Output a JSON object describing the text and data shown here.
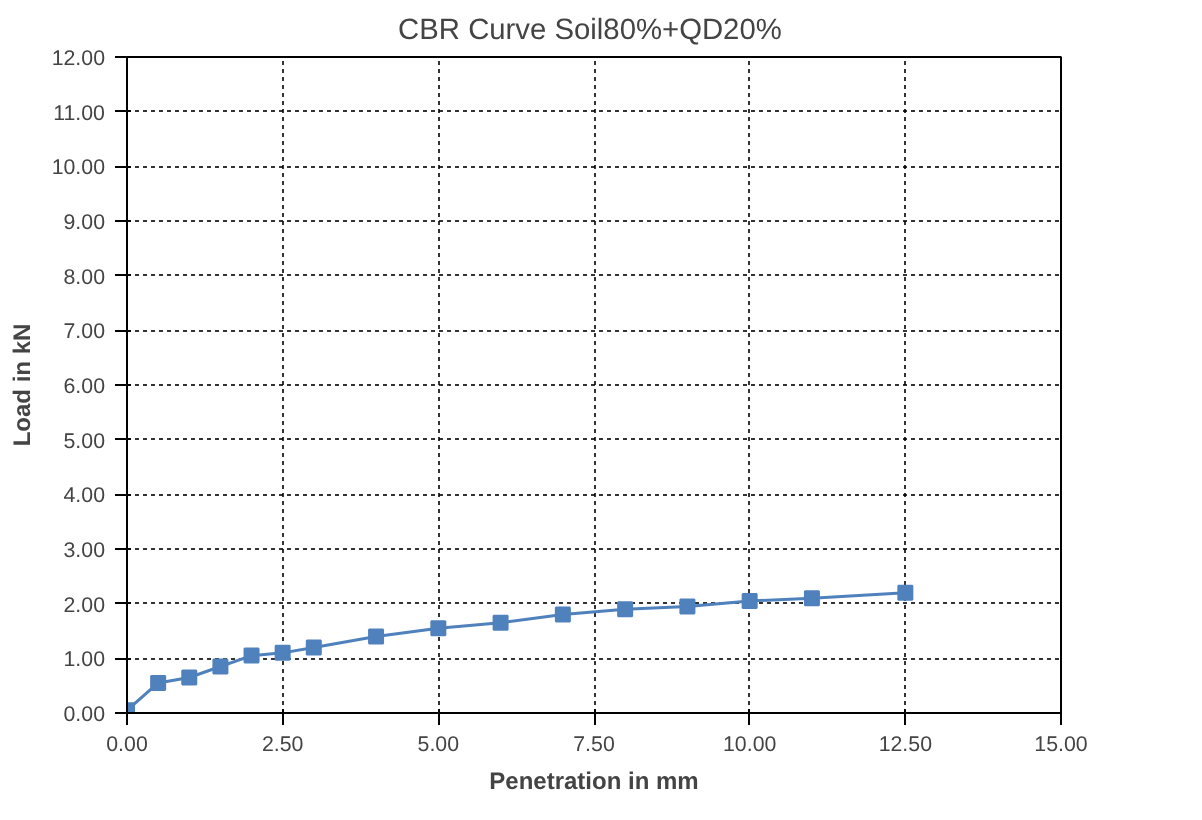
{
  "chart_data": {
    "type": "line",
    "title": "CBR Curve  Soil80%+QD20%",
    "xlabel": "Penetration in mm",
    "ylabel": "Load in kN",
    "x": [
      0,
      0.5,
      1,
      1.5,
      2,
      2.5,
      3,
      4,
      5,
      6,
      7,
      8,
      9,
      10,
      11,
      12.5
    ],
    "series": [
      {
        "color": "#4f81bd",
        "values": [
          0.05,
          0.55,
          0.65,
          0.85,
          1.05,
          1.1,
          1.2,
          1.4,
          1.55,
          1.65,
          1.8,
          1.9,
          1.95,
          2.05,
          2.1,
          2.2
        ]
      }
    ],
    "xlim": [
      0,
      15
    ],
    "ylim": [
      0,
      12
    ],
    "xticks": [
      {
        "value": 0,
        "label": "0.00"
      },
      {
        "value": 2.5,
        "label": "2.50"
      },
      {
        "value": 5,
        "label": "5.00"
      },
      {
        "value": 7.5,
        "label": "7.50"
      },
      {
        "value": 10,
        "label": "10.00"
      },
      {
        "value": 12.5,
        "label": "12.50"
      },
      {
        "value": 15,
        "label": "15.00"
      }
    ],
    "yticks": [
      {
        "value": 0,
        "label": "0.00"
      },
      {
        "value": 1,
        "label": "1.00"
      },
      {
        "value": 2,
        "label": "2.00"
      },
      {
        "value": 3,
        "label": "3.00"
      },
      {
        "value": 4,
        "label": "4.00"
      },
      {
        "value": 5,
        "label": "5.00"
      },
      {
        "value": 6,
        "label": "6.00"
      },
      {
        "value": 7,
        "label": "7.00"
      },
      {
        "value": 8,
        "label": "8.00"
      },
      {
        "value": 9,
        "label": "9.00"
      },
      {
        "value": 10,
        "label": "10.00"
      },
      {
        "value": 11,
        "label": "11.00"
      },
      {
        "value": 12,
        "label": "12.00"
      }
    ],
    "grid": true,
    "marker": "square",
    "line_style": "solid"
  }
}
